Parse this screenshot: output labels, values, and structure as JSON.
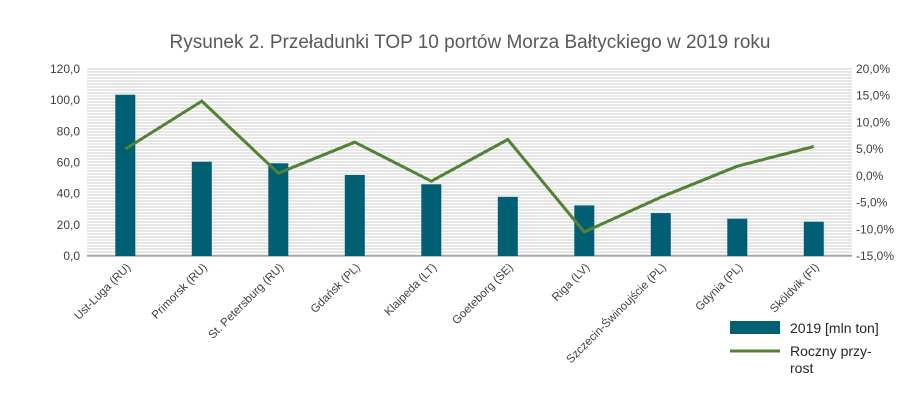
{
  "chart_data": {
    "type": "bar",
    "title": "Rysunek 2. Przeładunki TOP 10 portów Morza Bałtyckiego w 2019 roku",
    "categories": [
      "Ust-Luga (RU)",
      "Primorsk (RU)",
      "St. Petersburg (RU)",
      "Gdańsk (PL)",
      "Klaipeda (LT)",
      "Goeteborg (SE)",
      "Riga (LV)",
      "Szczecin-Świnoujście (PL)",
      "Gdynia (PL)",
      "Sköldvik (FI)"
    ],
    "series": [
      {
        "name": "2019 [mln ton]",
        "type": "bar",
        "axis": "left",
        "color": "#005F73",
        "values": [
          103.5,
          60.5,
          59.5,
          52.0,
          46.0,
          38.0,
          32.5,
          27.5,
          24.0,
          22.0
        ]
      },
      {
        "name": "Roczny przy-rost",
        "legend_lines": [
          "Roczny przy-",
          "rost"
        ],
        "type": "line",
        "axis": "right",
        "color": "#548235",
        "values": [
          5.0,
          14.0,
          0.5,
          6.3,
          -1.0,
          6.8,
          -10.5,
          -4.0,
          1.8,
          5.5
        ]
      }
    ],
    "y_left": {
      "min": 0,
      "max": 120,
      "step": 20,
      "tick_labels": [
        "0,0",
        "20,0",
        "40,0",
        "60,0",
        "80,0",
        "100,0",
        "120,0"
      ]
    },
    "y_right": {
      "min": -15,
      "max": 20,
      "step": 5,
      "tick_labels": [
        "-15,0%",
        "-10,0%",
        "-5,0%",
        "0,0%",
        "5,0%",
        "10,0%",
        "15,0%",
        "20,0%"
      ]
    },
    "grid": true,
    "legend": "bottom-right"
  }
}
